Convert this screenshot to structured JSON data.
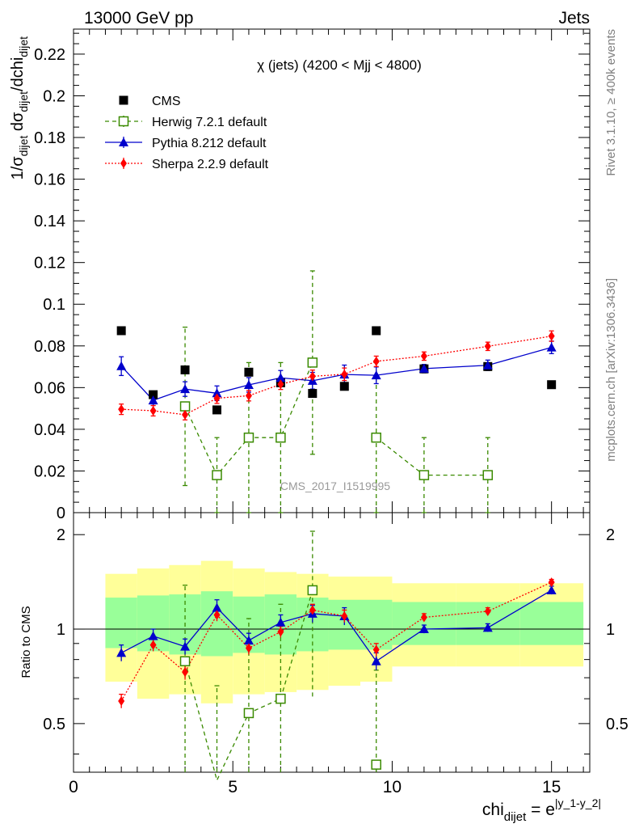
{
  "header": {
    "left": "13000 GeV pp",
    "right": "Jets"
  },
  "side_labels": {
    "rivet": "Rivet 3.1.10, ≥ 400k events",
    "mcplots": "mcplots.cern.ch [arXiv:1306.3436]"
  },
  "watermark": "CMS_2017_I1519995",
  "chart_data": {
    "type": "scatter",
    "title": "χ (jets) (4200 < Mjj < 4800)",
    "ylabel_main": "1/σ_dijet dσ_dijet/dchi_dijet",
    "ylabel_ratio": "Ratio to CMS",
    "xlabel": "chi_dijet = e^|y_1-y_2|",
    "xlim": [
      0,
      16.2
    ],
    "ylim_main": [
      0,
      0.232
    ],
    "ylim_ratio": [
      0.35,
      2.35
    ],
    "ratio_log_scale": true,
    "x_ticks": [
      "0",
      "5",
      "10",
      "15"
    ],
    "y_ticks_main": [
      "0",
      "0.02",
      "0.04",
      "0.06",
      "0.08",
      "0.1",
      "0.12",
      "0.14",
      "0.16",
      "0.18",
      "0.2",
      "0.22"
    ],
    "y_ticks_ratio": [
      "0.5",
      "1",
      "2"
    ],
    "legend_position": "top-left",
    "bins": [
      [
        1,
        2
      ],
      [
        2,
        3
      ],
      [
        3,
        4
      ],
      [
        4,
        5
      ],
      [
        5,
        6
      ],
      [
        6,
        7
      ],
      [
        7,
        8
      ],
      [
        8,
        9
      ],
      [
        9,
        10
      ],
      [
        10,
        12
      ],
      [
        12,
        14
      ],
      [
        14,
        16
      ]
    ],
    "x": [
      1.5,
      2.5,
      3.5,
      4.5,
      5.5,
      6.5,
      7.5,
      8.5,
      9.5,
      11,
      13,
      15
    ],
    "band_inner": [
      [
        0.87,
        1.26
      ],
      [
        0.85,
        1.28
      ],
      [
        0.83,
        1.29
      ],
      [
        0.82,
        1.32
      ],
      [
        0.84,
        1.27
      ],
      [
        0.83,
        1.29
      ],
      [
        0.85,
        1.26
      ],
      [
        0.86,
        1.24
      ],
      [
        0.86,
        1.24
      ],
      [
        0.89,
        1.22
      ],
      [
        0.89,
        1.22
      ],
      [
        0.89,
        1.22
      ]
    ],
    "band_outer": [
      [
        0.68,
        1.5
      ],
      [
        0.6,
        1.56
      ],
      [
        0.62,
        1.6
      ],
      [
        0.58,
        1.65
      ],
      [
        0.62,
        1.56
      ],
      [
        0.63,
        1.52
      ],
      [
        0.64,
        1.5
      ],
      [
        0.66,
        1.47
      ],
      [
        0.68,
        1.47
      ],
      [
        0.76,
        1.4
      ],
      [
        0.76,
        1.4
      ],
      [
        0.76,
        1.4
      ]
    ],
    "series": [
      {
        "name": "CMS",
        "color": "#000000",
        "marker": "square",
        "values": [
          0.0873,
          0.0566,
          0.0685,
          0.0493,
          0.0674,
          0.0623,
          0.0572,
          0.0606,
          0.0873,
          0.069,
          0.0701,
          0.0614
        ],
        "errors": [
          0,
          0,
          0,
          0,
          0,
          0,
          0,
          0,
          0,
          0,
          0,
          0
        ],
        "ratio": [
          1,
          1,
          1,
          1,
          1,
          1,
          1,
          1,
          1,
          1,
          1,
          1
        ],
        "ratio_errors": [
          0,
          0,
          0,
          0,
          0,
          0,
          0,
          0,
          0,
          0,
          0,
          0
        ]
      },
      {
        "name": "Herwig 7.2.1 default",
        "color": "#3a8a00",
        "marker": "open-square",
        "line": "dashed",
        "values": [
          null,
          null,
          0.051,
          0.018,
          0.036,
          0.036,
          0.072,
          null,
          0.036,
          0.018,
          0.018,
          null
        ],
        "errors": [
          null,
          null,
          0.038,
          0.018,
          0.036,
          0.036,
          0.044,
          null,
          0.036,
          0.018,
          0.018,
          null
        ],
        "ratio": [
          null,
          null,
          0.79,
          0.33,
          0.54,
          0.6,
          1.33,
          null,
          0.37,
          null,
          null,
          null
        ],
        "ratio_errors": [
          null,
          null,
          0.59,
          0.33,
          0.54,
          0.6,
          0.72,
          null,
          0.37,
          null,
          null,
          null
        ]
      },
      {
        "name": "Pythia 8.212 default",
        "color": "#0000cc",
        "marker": "triangle",
        "line": "solid",
        "values": [
          0.0703,
          0.0539,
          0.0593,
          0.0573,
          0.0613,
          0.0647,
          0.0633,
          0.0663,
          0.0659,
          0.0691,
          0.0707,
          0.0793
        ],
        "errors": [
          0.0045,
          0.0025,
          0.0035,
          0.0035,
          0.0035,
          0.0035,
          0.004,
          0.0045,
          0.004,
          0.002,
          0.0025,
          0.003
        ],
        "ratio": [
          0.84,
          0.95,
          0.88,
          1.17,
          0.92,
          1.05,
          1.12,
          1.1,
          0.79,
          1.0,
          1.01,
          1.33
        ],
        "ratio_errors": [
          0.05,
          0.05,
          0.05,
          0.07,
          0.05,
          0.06,
          0.07,
          0.07,
          0.05,
          0.03,
          0.03,
          0.04
        ]
      },
      {
        "name": "Sherpa 2.2.9 default",
        "color": "#ff0000",
        "marker": "diamond",
        "line": "dotted",
        "values": [
          0.0496,
          0.0489,
          0.047,
          0.0549,
          0.0561,
          0.0616,
          0.0654,
          0.0664,
          0.0726,
          0.0751,
          0.0798,
          0.0847
        ],
        "errors": [
          0.0025,
          0.0025,
          0.0025,
          0.0025,
          0.0025,
          0.0025,
          0.003,
          0.003,
          0.0025,
          0.002,
          0.002,
          0.0025
        ],
        "ratio": [
          0.59,
          0.89,
          0.73,
          1.11,
          0.87,
          0.98,
          1.15,
          1.1,
          0.86,
          1.09,
          1.14,
          1.41
        ],
        "ratio_errors": [
          0.03,
          0.04,
          0.04,
          0.05,
          0.04,
          0.04,
          0.05,
          0.05,
          0.04,
          0.03,
          0.03,
          0.03
        ]
      }
    ]
  }
}
